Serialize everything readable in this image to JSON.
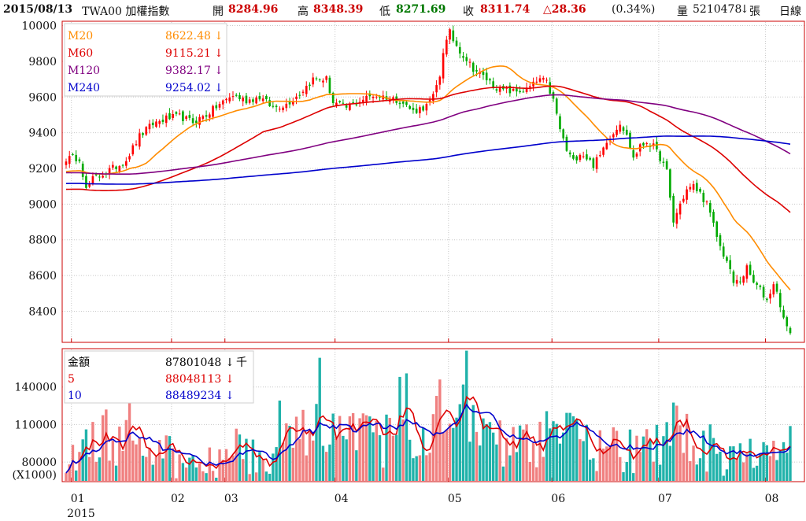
{
  "header": {
    "date": "2015/08/13",
    "symbol": "TWA00 加權指數",
    "open_label": "開",
    "open": "8284.96",
    "high_label": "高",
    "high": "8348.39",
    "low_label": "低",
    "low": "8271.69",
    "close_label": "收",
    "close": "8311.74",
    "change": "△28.36",
    "change_pct": "(0.34%)",
    "volume_label": "量",
    "volume": "5210478",
    "volume_arrow": "↓",
    "volume_unit": "張",
    "period": "日線"
  },
  "colors": {
    "up": "#ff0000",
    "down": "#00aa00",
    "ma20": "#ff8c00",
    "ma60": "#dd0000",
    "ma120": "#800080",
    "ma240": "#0000cc",
    "vol_up": "#f08080",
    "vol_down": "#20b2aa",
    "vol_ma5": "#dd0000",
    "vol_ma10": "#0000cc",
    "frame": "#cc0000",
    "grid": "#c8c8c8"
  },
  "price_legend": [
    {
      "name": "M20",
      "value": "8622.48",
      "arrow": "↓",
      "color": "#ff8c00"
    },
    {
      "name": "M60",
      "value": "9115.21",
      "arrow": "↓",
      "color": "#dd0000"
    },
    {
      "name": "M120",
      "value": "9382.17",
      "arrow": "↓",
      "color": "#800080"
    },
    {
      "name": "M240",
      "value": "9254.02",
      "arrow": "↓",
      "color": "#0000cc"
    }
  ],
  "volume_legend": [
    {
      "name": "金額",
      "value": "87801048",
      "arrow": "↓",
      "unit": "千",
      "color": "#000000"
    },
    {
      "name": "5",
      "value": "88048113",
      "arrow": "↓",
      "unit": "",
      "color": "#dd0000"
    },
    {
      "name": "10",
      "value": "88489234",
      "arrow": "↓",
      "unit": "",
      "color": "#0000cc"
    }
  ],
  "chart_data": {
    "type": "candlestick",
    "price_axis": {
      "ticks": [
        10000,
        9800,
        9600,
        9400,
        9200,
        9000,
        8800,
        8600,
        8400
      ],
      "range": [
        8230,
        10020
      ]
    },
    "volume_axis": {
      "ticks": [
        140000,
        110000,
        80000
      ],
      "unit_label": "(X1000)",
      "range": [
        65000,
        170000
      ]
    },
    "x_axis": {
      "month_labels": [
        "01",
        "02",
        "03",
        "04",
        "05",
        "06",
        "07",
        "08"
      ],
      "month_start_index": [
        3,
        33,
        49,
        82,
        116,
        147,
        179,
        211
      ],
      "year_label": "2015"
    },
    "price_anchors": [
      [
        0,
        9255
      ],
      [
        4,
        9260
      ],
      [
        6,
        9080
      ],
      [
        8,
        9140
      ],
      [
        12,
        9180
      ],
      [
        16,
        9220
      ],
      [
        18,
        9250
      ],
      [
        22,
        9380
      ],
      [
        26,
        9450
      ],
      [
        30,
        9480
      ],
      [
        34,
        9490
      ],
      [
        38,
        9460
      ],
      [
        42,
        9500
      ],
      [
        46,
        9560
      ],
      [
        50,
        9610
      ],
      [
        54,
        9580
      ],
      [
        58,
        9600
      ],
      [
        62,
        9540
      ],
      [
        66,
        9560
      ],
      [
        70,
        9620
      ],
      [
        74,
        9700
      ],
      [
        78,
        9700
      ],
      [
        80,
        9570
      ],
      [
        84,
        9540
      ],
      [
        88,
        9580
      ],
      [
        92,
        9610
      ],
      [
        96,
        9600
      ],
      [
        100,
        9580
      ],
      [
        104,
        9520
      ],
      [
        108,
        9550
      ],
      [
        110,
        9600
      ],
      [
        112,
        9720
      ],
      [
        113,
        9860
      ],
      [
        115,
        9960
      ],
      [
        116,
        9920
      ],
      [
        118,
        9860
      ],
      [
        122,
        9760
      ],
      [
        126,
        9700
      ],
      [
        130,
        9640
      ],
      [
        134,
        9630
      ],
      [
        138,
        9640
      ],
      [
        142,
        9700
      ],
      [
        144,
        9680
      ],
      [
        146,
        9580
      ],
      [
        148,
        9420
      ],
      [
        150,
        9300
      ],
      [
        152,
        9240
      ],
      [
        154,
        9290
      ],
      [
        156,
        9260
      ],
      [
        158,
        9220
      ],
      [
        160,
        9270
      ],
      [
        162,
        9360
      ],
      [
        164,
        9400
      ],
      [
        166,
        9460
      ],
      [
        168,
        9380
      ],
      [
        170,
        9260
      ],
      [
        172,
        9320
      ],
      [
        174,
        9350
      ],
      [
        176,
        9320
      ],
      [
        178,
        9260
      ],
      [
        180,
        9180
      ],
      [
        181,
        9030
      ],
      [
        182,
        8900
      ],
      [
        184,
        9000
      ],
      [
        186,
        9080
      ],
      [
        188,
        9100
      ],
      [
        190,
        9060
      ],
      [
        192,
        9000
      ],
      [
        194,
        8880
      ],
      [
        196,
        8760
      ],
      [
        198,
        8680
      ],
      [
        200,
        8560
      ],
      [
        202,
        8570
      ],
      [
        204,
        8640
      ],
      [
        206,
        8560
      ],
      [
        208,
        8520
      ],
      [
        210,
        8460
      ],
      [
        212,
        8560
      ],
      [
        214,
        8440
      ],
      [
        215,
        8360
      ],
      [
        216,
        8300
      ],
      [
        217,
        8290
      ]
    ],
    "vol_anchors": [
      [
        0,
        78000
      ],
      [
        5,
        92000
      ],
      [
        10,
        101000
      ],
      [
        15,
        98000
      ],
      [
        20,
        91000
      ],
      [
        25,
        88000
      ],
      [
        30,
        84000
      ],
      [
        35,
        78000
      ],
      [
        40,
        80000
      ],
      [
        45,
        85000
      ],
      [
        50,
        92000
      ],
      [
        55,
        88000
      ],
      [
        60,
        90000
      ],
      [
        65,
        93000
      ],
      [
        70,
        98000
      ],
      [
        75,
        103000
      ],
      [
        80,
        100000
      ],
      [
        85,
        97000
      ],
      [
        90,
        98000
      ],
      [
        95,
        95000
      ],
      [
        100,
        96000
      ],
      [
        105,
        99000
      ],
      [
        110,
        110000
      ],
      [
        113,
        125000
      ],
      [
        115,
        140000
      ],
      [
        117,
        135000
      ],
      [
        120,
        115000
      ],
      [
        125,
        98000
      ],
      [
        130,
        94000
      ],
      [
        135,
        92000
      ],
      [
        140,
        95000
      ],
      [
        145,
        99000
      ],
      [
        150,
        103000
      ],
      [
        155,
        96000
      ],
      [
        160,
        88000
      ],
      [
        165,
        90000
      ],
      [
        170,
        89000
      ],
      [
        175,
        88000
      ],
      [
        180,
        95000
      ],
      [
        182,
        104000
      ],
      [
        185,
        100000
      ],
      [
        190,
        95000
      ],
      [
        195,
        88000
      ],
      [
        200,
        84000
      ],
      [
        205,
        85000
      ],
      [
        210,
        88000
      ],
      [
        215,
        90000
      ],
      [
        217,
        89000
      ]
    ],
    "n_days": 218
  }
}
